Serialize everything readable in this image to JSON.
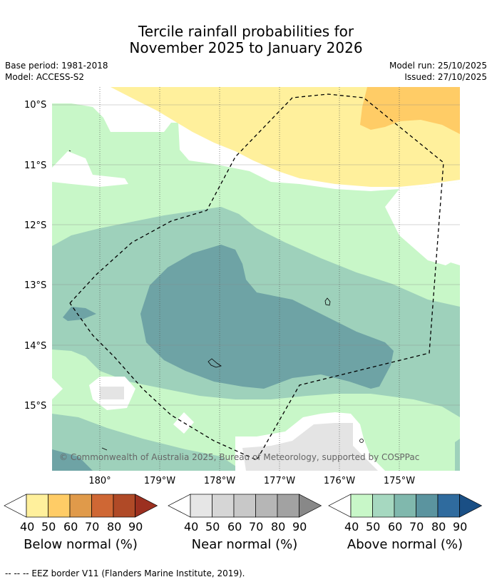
{
  "title": {
    "line1": "Tercile rainfall probabilities for",
    "line2": "November 2025 to January 2026"
  },
  "meta": {
    "base_period": "Base period: 1981-2018",
    "model": "Model: ACCESS-S2",
    "model_run": "Model run: 25/10/2025",
    "issued": "Issued: 27/10/2025"
  },
  "map": {
    "lat_labels": [
      "10°S",
      "11°S",
      "12°S",
      "13°S",
      "14°S",
      "15°S"
    ],
    "lon_labels": [
      "180°",
      "179°W",
      "178°W",
      "177°W",
      "176°W",
      "175°W"
    ],
    "copyright": "© Commonwealth of Australia 2025, Bureau of Meteorology, supported by COSPPac",
    "colors": {
      "ocean_background": "#ffffff",
      "above_50": "#c8f7c8",
      "above_60": "#9ed1bb",
      "above_70": "#6ea3a5",
      "below_50": "#fff09c",
      "below_60": "#ffcc66",
      "near_50": "#e4e4e4",
      "eez_border": "#000000"
    }
  },
  "colorbars": {
    "ticks": [
      "40",
      "50",
      "60",
      "70",
      "80",
      "90"
    ],
    "below": {
      "label": "Below normal (%)",
      "colors": [
        "#fff09c",
        "#ffcc66",
        "#e09a4a",
        "#cf6734",
        "#b04a27",
        "#9c3020"
      ]
    },
    "near": {
      "label": "Near normal (%)",
      "colors": [
        "#e6e6e6",
        "#d6d6d6",
        "#c8c8c8",
        "#b6b6b6",
        "#a2a2a2",
        "#888888"
      ]
    },
    "above": {
      "label": "Above normal (%)",
      "colors": [
        "#c8f7c8",
        "#a6d8c0",
        "#80b8ad",
        "#5b949f",
        "#2f6b9e",
        "#1a4f85"
      ]
    }
  },
  "footer": "--  --  -- EEZ border V11 (Flanders Marine Institute, 2019)."
}
